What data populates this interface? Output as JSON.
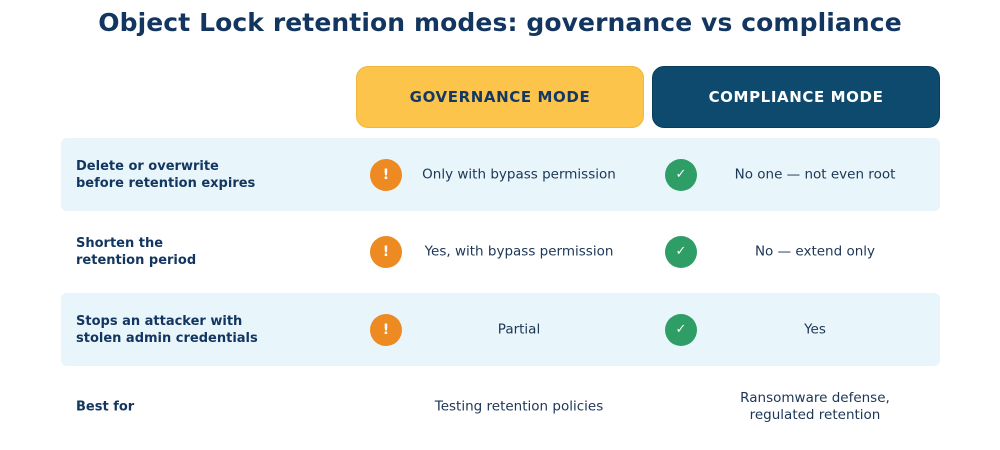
{
  "title": "Object Lock retention modes: governance vs compliance",
  "columns": {
    "governance": "GOVERNANCE MODE",
    "compliance": "COMPLIANCE MODE"
  },
  "colors": {
    "governance_header": "#fcc44a",
    "compliance_header": "#0d4a6e",
    "warning_icon": "#ee8a22",
    "check_icon": "#2e9e66",
    "row_shade": "#e8f5fa"
  },
  "icons": {
    "warning_glyph": "!",
    "check_glyph": "✓"
  },
  "rows": [
    {
      "label": "Delete or overwrite\nbefore retention expires",
      "governance": "Only with bypass permission",
      "compliance": "No one — not even root"
    },
    {
      "label": "Shorten the\nretention period",
      "governance": "Yes, with bypass permission",
      "compliance": "No — extend only"
    },
    {
      "label": "Stops an attacker with\nstolen admin credentials",
      "governance": "Partial",
      "compliance": "Yes"
    },
    {
      "label": "Best for",
      "governance": "Testing retention policies",
      "compliance": "Ransomware defense,\nregulated retention"
    }
  ]
}
